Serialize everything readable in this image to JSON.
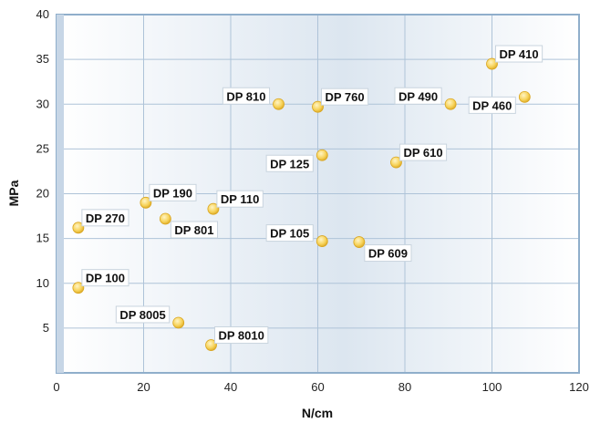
{
  "chart_data": {
    "type": "scatter",
    "title": "",
    "xlabel": "N/cm",
    "ylabel": "MPa",
    "xlim": [
      0,
      120
    ],
    "ylim": [
      0,
      40
    ],
    "xticks": [
      0,
      20,
      40,
      60,
      80,
      100,
      120
    ],
    "yticks": [
      5,
      10,
      15,
      20,
      25,
      30,
      35,
      40
    ],
    "grid": true,
    "colors": {
      "point": "#f7d35a",
      "point_edge": "#d9a520",
      "grid": "#aec3d8",
      "frame": "#8faecb"
    },
    "points": [
      {
        "label": "DP 410",
        "x": 100,
        "y": 34.5,
        "label_pos": "right"
      },
      {
        "label": "DP 810",
        "x": 51,
        "y": 30,
        "label_pos": "left"
      },
      {
        "label": "DP 760",
        "x": 60,
        "y": 29.7,
        "label_pos": "right"
      },
      {
        "label": "DP 490",
        "x": 90.5,
        "y": 30,
        "label_pos": "left"
      },
      {
        "label": "DP 460",
        "x": 107.5,
        "y": 30.8,
        "label_pos": "left-below"
      },
      {
        "label": "DP 125",
        "x": 61,
        "y": 24.3,
        "label_pos": "left-below"
      },
      {
        "label": "DP 610",
        "x": 78,
        "y": 23.5,
        "label_pos": "right"
      },
      {
        "label": "DP 270",
        "x": 5,
        "y": 16.2,
        "label_pos": "right"
      },
      {
        "label": "DP 190",
        "x": 20.5,
        "y": 19,
        "label_pos": "right"
      },
      {
        "label": "DP 110",
        "x": 36,
        "y": 18.3,
        "label_pos": "right"
      },
      {
        "label": "DP 801",
        "x": 25,
        "y": 17.2,
        "label_pos": "right-below"
      },
      {
        "label": "DP 105",
        "x": 61,
        "y": 14.7,
        "label_pos": "left"
      },
      {
        "label": "DP 609",
        "x": 69.5,
        "y": 14.6,
        "label_pos": "right-below"
      },
      {
        "label": "DP 100",
        "x": 5,
        "y": 9.5,
        "label_pos": "right"
      },
      {
        "label": "DP 8005",
        "x": 28,
        "y": 5.6,
        "label_pos": "left"
      },
      {
        "label": "DP 8010",
        "x": 35.5,
        "y": 3.1,
        "label_pos": "right"
      }
    ]
  }
}
